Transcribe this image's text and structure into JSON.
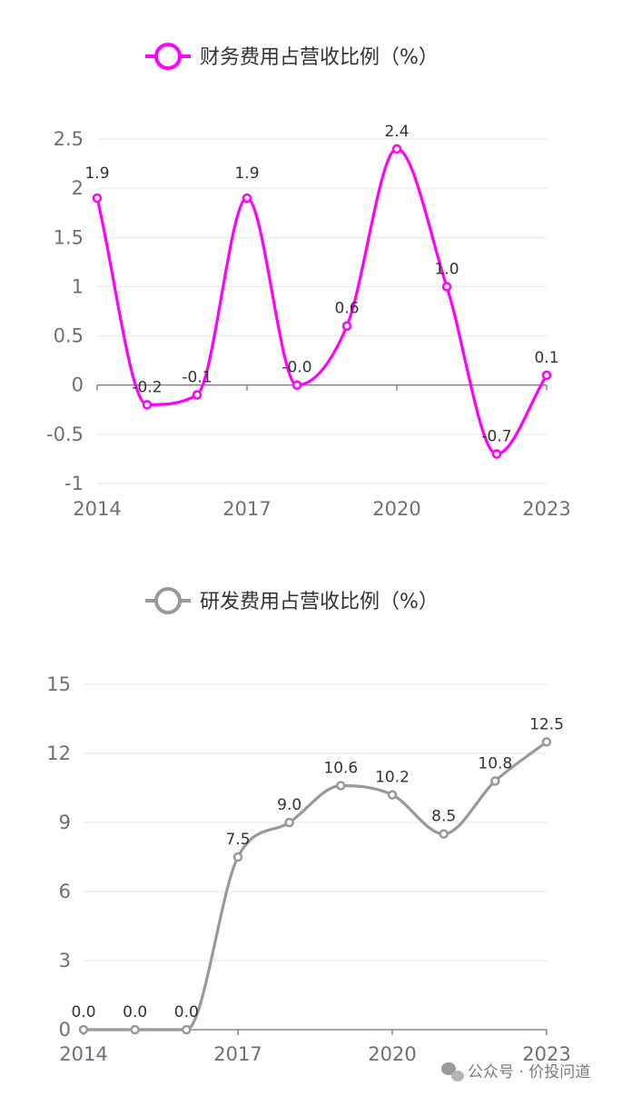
{
  "chart_data": [
    {
      "type": "line",
      "title": "财务费用占营收比例（%）",
      "legend": "财务费用占营收比例（%）",
      "color": "#ff00ff",
      "x": [
        2014,
        2015,
        2016,
        2017,
        2018,
        2019,
        2020,
        2021,
        2022,
        2023
      ],
      "x_tick_labels": [
        "2014",
        "2017",
        "2020",
        "2023"
      ],
      "values": [
        1.9,
        -0.2,
        -0.1,
        1.9,
        0.0,
        0.6,
        2.4,
        1.0,
        -0.7,
        0.1
      ],
      "data_labels": [
        "1.9",
        "-0.2",
        "-0.1",
        "1.9",
        "-0.0",
        "0.6",
        "2.4",
        "1.0",
        "-0.7",
        "0.1"
      ],
      "y_ticks": [
        "-1",
        "-0.5",
        "0",
        "0.5",
        "1",
        "1.5",
        "2",
        "2.5"
      ],
      "ylim": [
        -1,
        2.5
      ],
      "smooth": true,
      "grid": true
    },
    {
      "type": "line",
      "title": "研发费用占营收比例（%）",
      "legend": "研发费用占营收比例（%）",
      "color": "#999999",
      "x": [
        2014,
        2015,
        2016,
        2017,
        2018,
        2019,
        2020,
        2021,
        2022,
        2023
      ],
      "x_tick_labels": [
        "2014",
        "2017",
        "2020",
        "2023"
      ],
      "values": [
        0.0,
        0.0,
        0.0,
        7.5,
        9.0,
        10.6,
        10.2,
        8.5,
        10.8,
        12.5
      ],
      "data_labels": [
        "0.0",
        "0.0",
        "0.0",
        "7.5",
        "9.0",
        "10.6",
        "10.2",
        "8.5",
        "10.8",
        "12.5"
      ],
      "y_ticks": [
        "0",
        "3",
        "6",
        "9",
        "12",
        "15"
      ],
      "ylim": [
        0,
        15
      ],
      "smooth": true,
      "grid": true
    }
  ],
  "watermark": {
    "text": "公众号 · 价投问道",
    "icon": "wechat-icon"
  }
}
